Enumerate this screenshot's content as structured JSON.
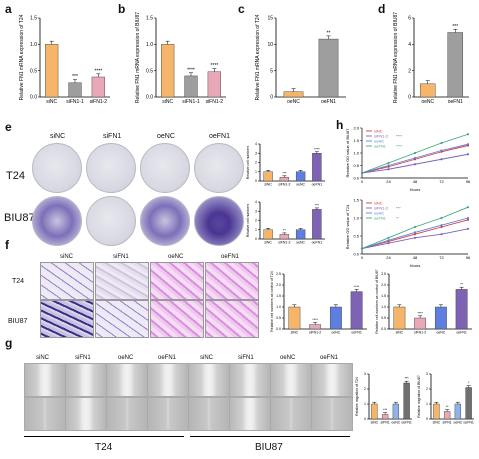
{
  "panels": {
    "a": "a",
    "b": "b",
    "c": "c",
    "d": "d",
    "e": "e",
    "f": "f",
    "g": "g",
    "h": "h"
  },
  "colors": {
    "orange": "#F5B56A",
    "gray": "#9E9E9E",
    "pink": "#E8A8B8",
    "purple": "#7E63B5",
    "blue": "#5F7FE0",
    "lightblue": "#8FB3E8",
    "darkgray": "#707070",
    "red": "#D9393C",
    "green": "#3EA87C"
  },
  "e_labels": {
    "siNC": "siNC",
    "siFN1": "siFN1",
    "oeNC": "oeNC",
    "oeFN1": "oeFN1",
    "t24": "T24",
    "biu87": "BIU87"
  },
  "f_labels": {
    "siNC": "siNC",
    "siFN1": "siFN1",
    "oeNC": "oeNC",
    "oeFN1": "oeFN1",
    "t24": "T24",
    "biu87": "BIU87"
  },
  "g_labels": {
    "siNC": "siNC",
    "siFN1": "siFN1",
    "oeNC": "oeNC",
    "oeFN1": "oeFN1",
    "siNC2": "siNC",
    "siFN12": "siFN1",
    "oeNC2": "oeNC",
    "oeFN12": "oeFN1",
    "t24": "T24",
    "biu87": "BIU87"
  },
  "chart_data": [
    {
      "id": "a",
      "type": "bar",
      "categories": [
        "siNC",
        "siFN1-1",
        "siFN1-2"
      ],
      "values": [
        1.0,
        0.27,
        0.38
      ],
      "ylim": [
        0,
        1.5
      ],
      "yticks": [
        "0.0",
        "0.5",
        "1.0",
        "1.5"
      ],
      "ylabel": "Relative FN1 mRNA expression of T24",
      "sig": [
        "",
        "***",
        "****"
      ],
      "colors": [
        "#F5B56A",
        "#9E9E9E",
        "#E8A8B8"
      ]
    },
    {
      "id": "b",
      "type": "bar",
      "categories": [
        "siNC",
        "siFN1-1",
        "siFN1-2"
      ],
      "values": [
        1.0,
        0.4,
        0.48
      ],
      "ylim": [
        0,
        1.5
      ],
      "yticks": [
        "0.0",
        "0.5",
        "1.0",
        "1.5"
      ],
      "ylabel": "Relative FN1 mRNA expression of BIU87",
      "sig": [
        "",
        "****",
        "****"
      ],
      "colors": [
        "#F5B56A",
        "#9E9E9E",
        "#E8A8B8"
      ]
    },
    {
      "id": "c",
      "type": "bar",
      "categories": [
        "oeNC",
        "oeFN1"
      ],
      "values": [
        1.0,
        11.0
      ],
      "ylim": [
        0,
        15
      ],
      "yticks": [
        "0",
        "5",
        "10",
        "15"
      ],
      "ylabel": "Relative FN1 mRNA expression of T24",
      "sig": [
        "",
        "**"
      ],
      "colors": [
        "#F5B56A",
        "#9E9E9E"
      ]
    },
    {
      "id": "d",
      "type": "bar",
      "categories": [
        "oeNC",
        "oeFN1"
      ],
      "values": [
        1.0,
        4.9
      ],
      "ylim": [
        0,
        6
      ],
      "yticks": [
        "0",
        "2",
        "4",
        "6"
      ],
      "ylabel": "Relative FN1 mRNA expression of BIU87",
      "sig": [
        "",
        "***"
      ],
      "colors": [
        "#F5B56A",
        "#9E9E9E"
      ]
    },
    {
      "id": "e1",
      "type": "bar",
      "categories": [
        "siNC",
        "siFN1-2",
        "oeNC",
        "oeFN1"
      ],
      "values": [
        1.0,
        0.4,
        1.0,
        3.0
      ],
      "ylim": [
        0,
        4
      ],
      "yticks": [
        "0",
        "1",
        "2",
        "3",
        "4"
      ],
      "ylabel": "Relative cell numbers",
      "sig": [
        "",
        "***",
        "",
        "****"
      ],
      "colors": [
        "#F5B56A",
        "#E8A8B8",
        "#5F7FE0",
        "#7E63B5"
      ]
    },
    {
      "id": "e2",
      "type": "bar",
      "categories": [
        "siNC",
        "siFN1-2",
        "oeNC",
        "oeFN1"
      ],
      "values": [
        1.0,
        0.5,
        1.0,
        3.2
      ],
      "ylim": [
        0,
        4
      ],
      "yticks": [
        "0",
        "1",
        "2",
        "3",
        "4"
      ],
      "ylabel": "Relative cell numbers",
      "sig": [
        "",
        "**",
        "",
        "***"
      ],
      "colors": [
        "#F5B56A",
        "#E8A8B8",
        "#5F7FE0",
        "#7E63B5"
      ]
    },
    {
      "id": "f1",
      "type": "bar",
      "categories": [
        "siNC",
        "siFN1-2",
        "oeNC",
        "oeFN1"
      ],
      "values": [
        1.0,
        0.2,
        1.0,
        1.7
      ],
      "ylim": [
        0,
        2.5
      ],
      "yticks": [
        "0.0",
        "0.5",
        "1.0",
        "1.5",
        "2.0",
        "2.5"
      ],
      "ylabel": "Relative cell numbers as control of T24",
      "sig": [
        "",
        "****",
        "",
        "****"
      ],
      "colors": [
        "#F5B56A",
        "#E8A8B8",
        "#5F7FE0",
        "#7E63B5"
      ]
    },
    {
      "id": "f2",
      "type": "bar",
      "categories": [
        "siNC",
        "siFN1-2",
        "oeNC",
        "oeFN1"
      ],
      "values": [
        1.0,
        0.5,
        1.0,
        1.8
      ],
      "ylim": [
        0,
        2.5
      ],
      "yticks": [
        "0.0",
        "0.5",
        "1.0",
        "1.5",
        "2.0",
        "2.5"
      ],
      "ylabel": "Relative cell numbers as control of BIU87",
      "sig": [
        "",
        "****",
        "",
        "**"
      ],
      "colors": [
        "#F5B56A",
        "#E8A8B8",
        "#5F7FE0",
        "#7E63B5"
      ]
    },
    {
      "id": "g1",
      "type": "bar",
      "categories": [
        "siNC",
        "siFN1",
        "oeNC",
        "oeFN1"
      ],
      "values": [
        1.0,
        0.3,
        1.0,
        2.4
      ],
      "ylim": [
        0,
        3
      ],
      "yticks": [
        "0",
        "1",
        "2",
        "3"
      ],
      "ylabel": "Relative migration of T24",
      "sig": [
        "",
        "***",
        "",
        "***"
      ],
      "colors": [
        "#F5B56A",
        "#E8A8B8",
        "#8FB3E8",
        "#707070"
      ]
    },
    {
      "id": "g2",
      "type": "bar",
      "categories": [
        "siNC",
        "siFN1",
        "oeNC",
        "oeFN1"
      ],
      "values": [
        1.0,
        0.5,
        1.0,
        2.1
      ],
      "ylim": [
        0,
        3
      ],
      "yticks": [
        "0",
        "1",
        "2",
        "3"
      ],
      "ylabel": "Relative migration of BIU87",
      "sig": [
        "",
        "**",
        "",
        "*"
      ],
      "colors": [
        "#F5B56A",
        "#E8A8B8",
        "#8FB3E8",
        "#707070"
      ]
    },
    {
      "id": "h1",
      "type": "line",
      "x": [
        0,
        24,
        48,
        72,
        96
      ],
      "xlabel": "Hours",
      "ylabel": "Relative OD value of BIU87",
      "ylim": [
        0,
        2.0
      ],
      "yticks": [
        "0.0",
        "0.5",
        "1.0",
        "1.5",
        "2.0"
      ],
      "series": [
        {
          "name": "siNC",
          "values": [
            0.2,
            0.45,
            0.75,
            1.05,
            1.3
          ],
          "color": "#D9393C"
        },
        {
          "name": "siFN1-2",
          "values": [
            0.2,
            0.35,
            0.55,
            0.75,
            0.95
          ],
          "color": "#7E63B5"
        },
        {
          "name": "oeNC",
          "values": [
            0.2,
            0.5,
            0.8,
            1.1,
            1.35
          ],
          "color": "#5F7FE0"
        },
        {
          "name": "oeFN1",
          "values": [
            0.2,
            0.6,
            1.0,
            1.4,
            1.75
          ],
          "color": "#3EA87C"
        }
      ],
      "legend_sig": [
        "",
        "****",
        "",
        "****"
      ]
    },
    {
      "id": "h2",
      "type": "line",
      "x": [
        0,
        24,
        48,
        72,
        96
      ],
      "xlabel": "Hours",
      "ylabel": "Relative OD value of T24",
      "ylim": [
        0,
        1.5
      ],
      "yticks": [
        "0.0",
        "0.5",
        "1.0",
        "1.5"
      ],
      "series": [
        {
          "name": "siNC",
          "values": [
            0.15,
            0.35,
            0.55,
            0.75,
            0.95
          ],
          "color": "#D9393C"
        },
        {
          "name": "siFN1-2",
          "values": [
            0.15,
            0.3,
            0.45,
            0.55,
            0.7
          ],
          "color": "#7E63B5"
        },
        {
          "name": "oeNC",
          "values": [
            0.15,
            0.38,
            0.6,
            0.8,
            1.0
          ],
          "color": "#5F7FE0"
        },
        {
          "name": "oeFN1",
          "values": [
            0.15,
            0.45,
            0.75,
            1.0,
            1.3
          ],
          "color": "#3EA87C"
        }
      ],
      "legend_sig": [
        "",
        "***",
        "",
        "**"
      ]
    }
  ]
}
